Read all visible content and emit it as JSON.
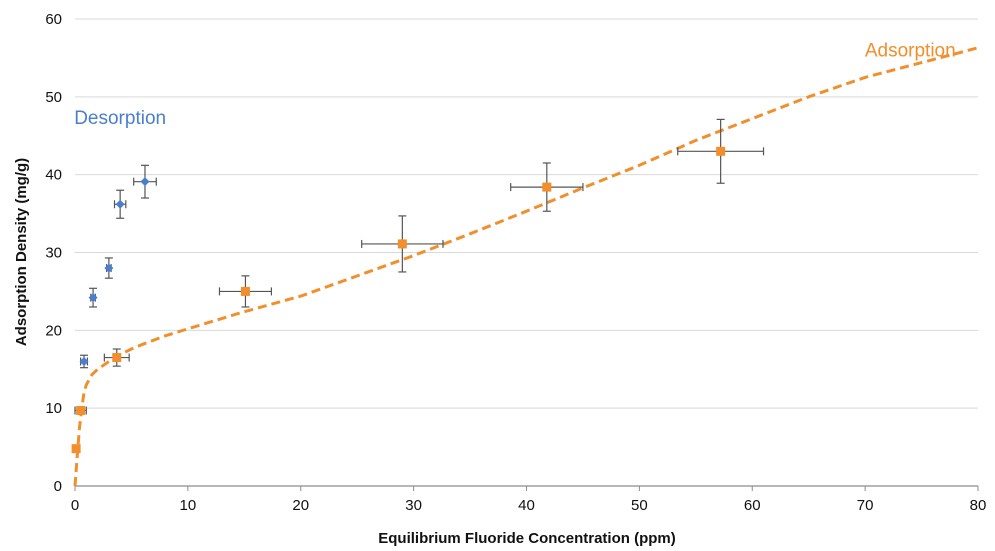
{
  "chart_data": {
    "type": "scatter",
    "title": "",
    "xlabel": "Equilibrium Fluoride Concentration (ppm)",
    "ylabel": "Adsorption Density (mg/g)",
    "xlim": [
      0,
      80
    ],
    "ylim": [
      0,
      60
    ],
    "xticks": [
      0,
      10,
      20,
      30,
      40,
      50,
      60,
      70,
      80
    ],
    "yticks": [
      0,
      10,
      20,
      30,
      40,
      50,
      60
    ],
    "grid": "horizontal",
    "legend": "none",
    "colors": {
      "adsorption": "#f28e2b",
      "desorption": "#4a7fd0",
      "errorbar": "#555555",
      "grid": "#d9d9d9"
    },
    "annotations": [
      {
        "text": "Desorption",
        "series": "desorption",
        "x": 4,
        "y": 46.5
      },
      {
        "text": "Adsorption",
        "series": "adsorption",
        "x": 74,
        "y": 55.2
      }
    ],
    "series": [
      {
        "key": "desorption",
        "marker": "diamond",
        "points": [
          {
            "x": 0.8,
            "y": 16.0,
            "xerr": 0.3,
            "yerr": 0.8
          },
          {
            "x": 1.6,
            "y": 24.2,
            "xerr": 0.2,
            "yerr": 1.2
          },
          {
            "x": 3.0,
            "y": 28.0,
            "xerr": 0.2,
            "yerr": 1.3
          },
          {
            "x": 4.0,
            "y": 36.2,
            "xerr": 0.5,
            "yerr": 1.8
          },
          {
            "x": 6.2,
            "y": 39.1,
            "xerr": 1.0,
            "yerr": 2.1
          }
        ]
      },
      {
        "key": "adsorption",
        "marker": "square",
        "points": [
          {
            "x": 0.1,
            "y": 4.8,
            "xerr": 0,
            "yerr": 0
          },
          {
            "x": 0.5,
            "y": 9.7,
            "xerr": 0.5,
            "yerr": 0
          },
          {
            "x": 3.7,
            "y": 16.5,
            "xerr": 1.1,
            "yerr": 1.1
          },
          {
            "x": 15.1,
            "y": 25.0,
            "xerr": 2.3,
            "yerr": 2.0
          },
          {
            "x": 29.0,
            "y": 31.1,
            "xerr": 3.6,
            "yerr": 3.6
          },
          {
            "x": 41.8,
            "y": 38.4,
            "xerr": 3.2,
            "yerr": 3.1
          },
          {
            "x": 57.2,
            "y": 43.0,
            "xerr": 3.8,
            "yerr": 4.1
          }
        ]
      }
    ],
    "fit_curve": {
      "series": "adsorption",
      "style": "dashed",
      "points": [
        [
          0.0,
          0.0
        ],
        [
          0.2,
          4.0
        ],
        [
          0.4,
          7.5
        ],
        [
          0.6,
          10.0
        ],
        [
          0.8,
          12.0
        ],
        [
          1.0,
          13.0
        ],
        [
          1.5,
          14.3
        ],
        [
          2.0,
          15.0
        ],
        [
          3.0,
          16.0
        ],
        [
          4.0,
          16.9
        ],
        [
          5.0,
          17.6
        ],
        [
          6.0,
          18.2
        ],
        [
          8.0,
          19.3
        ],
        [
          10.0,
          20.2
        ],
        [
          15.0,
          22.4
        ],
        [
          20.0,
          24.4
        ],
        [
          25.0,
          27.0
        ],
        [
          30.0,
          29.6
        ],
        [
          35.0,
          32.4
        ],
        [
          40.0,
          35.3
        ],
        [
          45.0,
          38.3
        ],
        [
          50.0,
          41.2
        ],
        [
          55.0,
          44.4
        ],
        [
          60.0,
          47.2
        ],
        [
          65.0,
          50.0
        ],
        [
          70.0,
          52.5
        ],
        [
          75.0,
          54.4
        ],
        [
          80.0,
          56.3
        ]
      ]
    }
  }
}
